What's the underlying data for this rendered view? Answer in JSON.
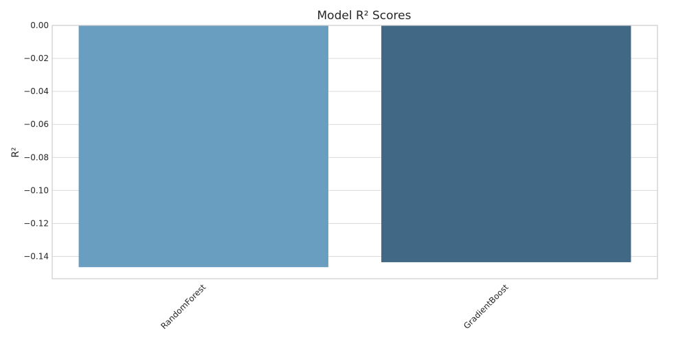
{
  "chart_data": {
    "type": "bar",
    "title": "Model R² Scores",
    "xlabel": "",
    "ylabel": "R²",
    "categories": [
      "RandomForest",
      "GradientBoost"
    ],
    "values": [
      -0.1465,
      -0.1435
    ],
    "colors": [
      "#6a9ec0",
      "#416985"
    ],
    "ylim": [
      -0.1535,
      0.0
    ],
    "yticks": [
      0.0,
      -0.02,
      -0.04,
      -0.06,
      -0.08,
      -0.1,
      -0.12,
      -0.14
    ],
    "ytick_labels": [
      "0.00",
      "−0.02",
      "−0.04",
      "−0.06",
      "−0.08",
      "−0.10",
      "−0.12",
      "−0.14"
    ],
    "grid": true,
    "legend": "none"
  }
}
